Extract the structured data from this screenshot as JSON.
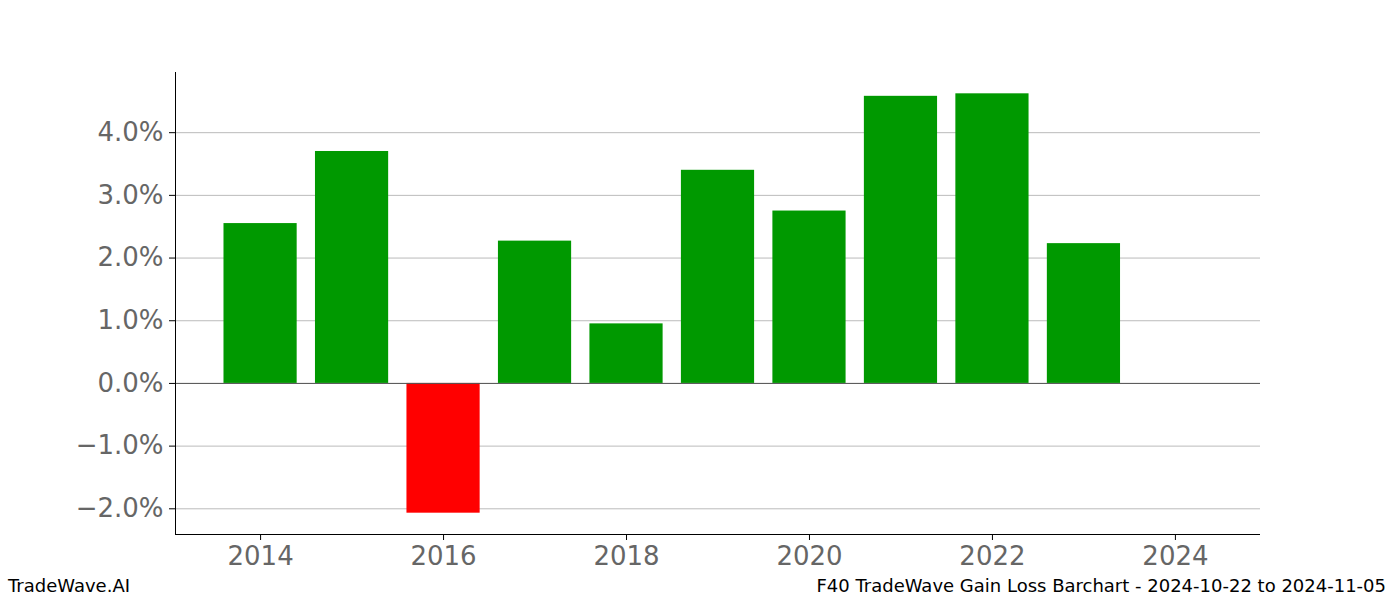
{
  "chart_data": {
    "type": "bar",
    "title": "F40 TradeWave Gain Loss Barchart - 2024-10-22 to 2024-11-05",
    "annotations": [
      "TradeWave.AI"
    ],
    "x": [
      2014,
      2015,
      2016,
      2017,
      2018,
      2019,
      2020,
      2021,
      2022,
      2023
    ],
    "values": [
      2.55,
      3.7,
      -2.07,
      2.27,
      0.95,
      3.4,
      2.75,
      4.58,
      4.62,
      2.23
    ],
    "colors": [
      "#009900",
      "#009900",
      "#ff0000",
      "#009900",
      "#009900",
      "#009900",
      "#009900",
      "#009900",
      "#009900",
      "#009900"
    ],
    "xlim": [
      2013.07,
      2024.93
    ],
    "xticks": [
      2014,
      2016,
      2018,
      2020,
      2022,
      2024
    ],
    "ylim": [
      -2.41,
      4.96
    ],
    "yticks": [
      {
        "value": -2,
        "label": "−2.0%"
      },
      {
        "value": -1,
        "label": "−1.0%"
      },
      {
        "value": 0,
        "label": "0.0%"
      },
      {
        "value": 1,
        "label": "1.0%"
      },
      {
        "value": 2,
        "label": "2.0%"
      },
      {
        "value": 3,
        "label": "3.0%"
      },
      {
        "value": 4,
        "label": "4.0%"
      }
    ],
    "grid": true
  }
}
